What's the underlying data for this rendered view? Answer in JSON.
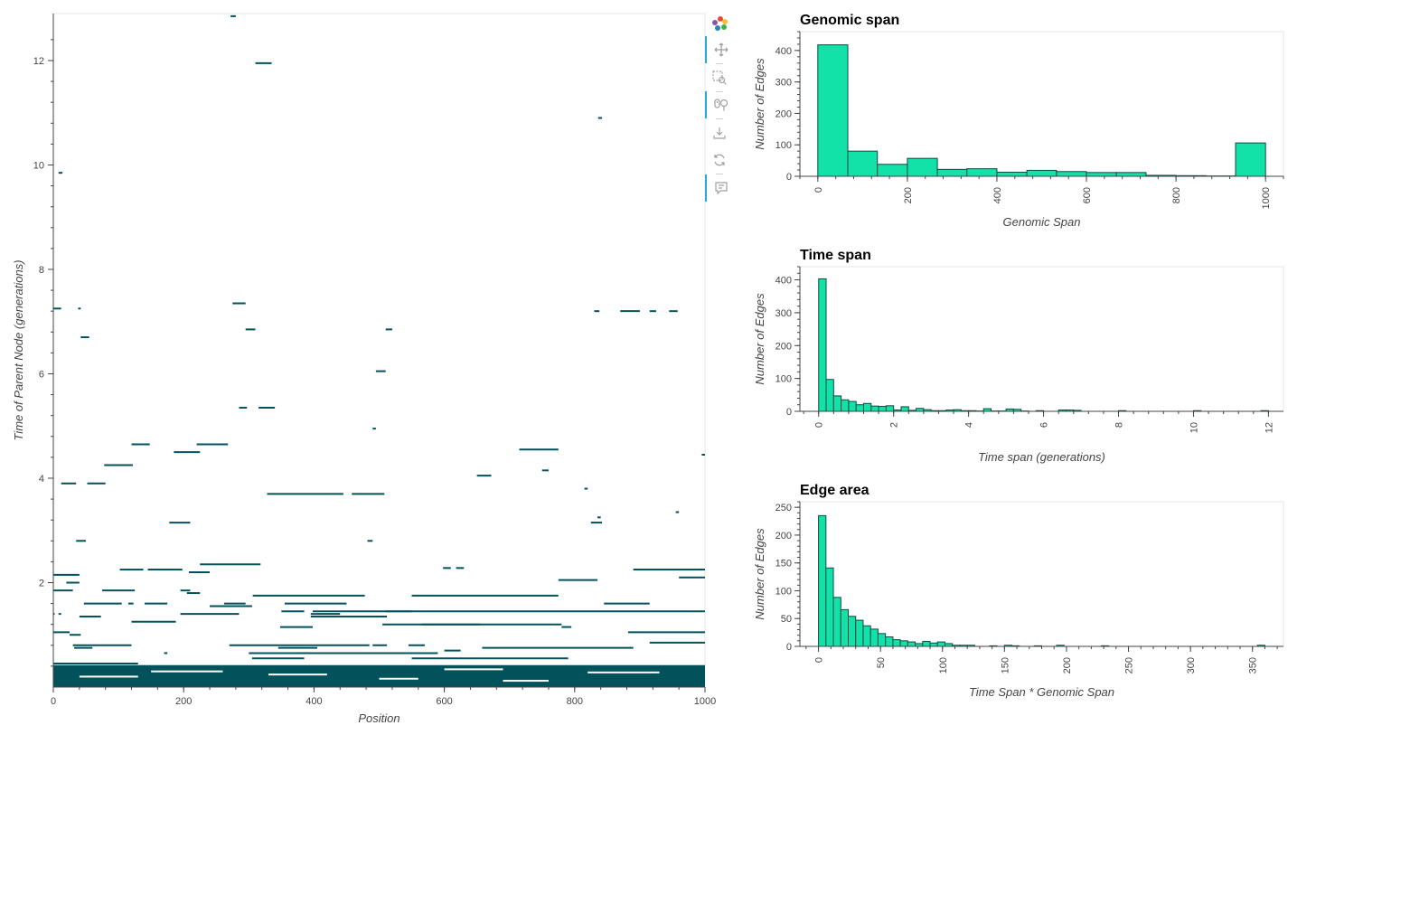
{
  "edges_plot": {
    "x_label": "Position",
    "y_label": "Time of Parent Node (generations)",
    "x_ticks": [
      "0",
      "200",
      "400",
      "600",
      "800",
      "1000"
    ],
    "y_ticks": [
      "2",
      "4",
      "6",
      "8",
      "10",
      "12"
    ],
    "colors": {
      "edge": "#02525c",
      "frame": "#e5e5e5",
      "axis": "#444444"
    }
  },
  "toolbar": {
    "items": [
      {
        "name": "bokeh-logo-icon",
        "active": false
      },
      {
        "name": "pan-icon",
        "active": true
      },
      {
        "name": "box-zoom-icon",
        "active": false
      },
      {
        "name": "wheel-zoom-icon",
        "active": true
      },
      {
        "name": "save-icon",
        "active": false
      },
      {
        "name": "reset-icon",
        "active": false
      },
      {
        "name": "hover-icon",
        "active": true
      }
    ]
  },
  "chart_data": [
    {
      "type": "scatter",
      "description_series": "edges",
      "title": "",
      "xlabel": "Position",
      "ylabel": "Time of Parent Node (generations)",
      "xlim": [
        0,
        1000
      ],
      "ylim": [
        0,
        12.9
      ],
      "x_ticks": [
        0,
        200,
        400,
        600,
        800,
        1000
      ],
      "y_ticks": [
        2,
        4,
        6,
        8,
        10,
        12
      ],
      "edges": [
        [
          272,
          280,
          12.85
        ],
        [
          310,
          335,
          11.95
        ],
        [
          836,
          842,
          10.9
        ],
        [
          8,
          14,
          9.85
        ],
        [
          0,
          12,
          7.25
        ],
        [
          38,
          42,
          7.25
        ],
        [
          830,
          838,
          7.2
        ],
        [
          870,
          900,
          7.2
        ],
        [
          915,
          925,
          7.2
        ],
        [
          945,
          958,
          7.2
        ],
        [
          275,
          295,
          7.35
        ],
        [
          295,
          310,
          6.85
        ],
        [
          42,
          55,
          6.7
        ],
        [
          510,
          520,
          6.85
        ],
        [
          495,
          510,
          6.05
        ],
        [
          315,
          340,
          5.35
        ],
        [
          285,
          297,
          5.35
        ],
        [
          490,
          495,
          4.95
        ],
        [
          120,
          148,
          4.65
        ],
        [
          220,
          268,
          4.65
        ],
        [
          185,
          225,
          4.5
        ],
        [
          715,
          775,
          4.55
        ],
        [
          995,
          1000,
          4.45
        ],
        [
          78,
          122,
          4.25
        ],
        [
          750,
          760,
          4.15
        ],
        [
          12,
          35,
          3.9
        ],
        [
          52,
          80,
          3.9
        ],
        [
          650,
          672,
          4.05
        ],
        [
          815,
          820,
          3.8
        ],
        [
          328,
          445,
          3.7
        ],
        [
          458,
          508,
          3.7
        ],
        [
          835,
          840,
          3.25
        ],
        [
          825,
          842,
          3.15
        ],
        [
          955,
          960,
          3.35
        ],
        [
          178,
          210,
          3.15
        ],
        [
          35,
          50,
          2.8
        ],
        [
          482,
          490,
          2.8
        ],
        [
          225,
          318,
          2.35
        ],
        [
          102,
          120,
          2.25
        ],
        [
          120,
          138,
          2.25
        ],
        [
          145,
          190,
          2.25
        ],
        [
          190,
          198,
          2.25
        ],
        [
          208,
          240,
          2.2
        ],
        [
          598,
          610,
          2.28
        ],
        [
          618,
          630,
          2.28
        ],
        [
          890,
          1000,
          2.25
        ],
        [
          0,
          40,
          2.15
        ],
        [
          20,
          40,
          2.0
        ],
        [
          0,
          30,
          1.85
        ],
        [
          75,
          125,
          1.85
        ],
        [
          195,
          210,
          1.85
        ],
        [
          205,
          225,
          1.8
        ],
        [
          306,
          478,
          1.75
        ],
        [
          550,
          775,
          1.75
        ],
        [
          775,
          835,
          2.05
        ],
        [
          960,
          1000,
          2.1
        ],
        [
          47,
          105,
          1.6
        ],
        [
          115,
          123,
          1.6
        ],
        [
          140,
          175,
          1.6
        ],
        [
          240,
          305,
          1.55
        ],
        [
          262,
          295,
          1.6
        ],
        [
          355,
          450,
          1.6
        ],
        [
          845,
          915,
          1.6
        ],
        [
          0,
          2,
          1.4
        ],
        [
          8,
          12,
          1.4
        ],
        [
          40,
          73,
          1.35
        ],
        [
          195,
          285,
          1.4
        ],
        [
          395,
          440,
          1.4
        ],
        [
          395,
          512,
          1.35
        ],
        [
          398,
          550,
          1.45
        ],
        [
          510,
          1000,
          1.45
        ],
        [
          120,
          188,
          1.25
        ],
        [
          350,
          385,
          1.45
        ],
        [
          505,
          655,
          1.2
        ],
        [
          565,
          780,
          1.2
        ],
        [
          780,
          795,
          1.15
        ],
        [
          0,
          25,
          1.05
        ],
        [
          25,
          42,
          1.0
        ],
        [
          348,
          398,
          1.15
        ],
        [
          882,
          1000,
          1.05
        ],
        [
          32,
          60,
          0.75
        ],
        [
          30,
          120,
          0.8
        ],
        [
          170,
          175,
          0.65
        ],
        [
          270,
          485,
          0.8
        ],
        [
          345,
          405,
          0.75
        ],
        [
          382,
          395,
          0.65
        ],
        [
          490,
          512,
          0.8
        ],
        [
          545,
          570,
          0.8
        ],
        [
          600,
          625,
          0.7
        ],
        [
          658,
          890,
          0.75
        ],
        [
          915,
          1000,
          0.85
        ],
        [
          305,
          385,
          0.55
        ],
        [
          0,
          130,
          0.45
        ],
        [
          300,
          590,
          0.65
        ],
        [
          550,
          790,
          0.55
        ]
      ],
      "dense_band": [
        0,
        0.42
      ]
    },
    {
      "type": "bar",
      "title": "Genomic span",
      "xlabel": "Genomic Span",
      "ylabel": "Number of Edges",
      "ylim": [
        0,
        460
      ],
      "xlim": [
        -40,
        1040
      ],
      "x_ticks": [
        0,
        200,
        400,
        600,
        800,
        1000
      ],
      "y_ticks": [
        0,
        100,
        200,
        300,
        400
      ],
      "bins": [
        [
          0,
          67,
          418
        ],
        [
          67,
          133,
          80
        ],
        [
          133,
          200,
          38
        ],
        [
          200,
          267,
          57
        ],
        [
          267,
          333,
          22
        ],
        [
          333,
          400,
          24
        ],
        [
          400,
          467,
          13
        ],
        [
          467,
          533,
          19
        ],
        [
          533,
          600,
          15
        ],
        [
          600,
          667,
          12
        ],
        [
          667,
          733,
          12
        ],
        [
          733,
          800,
          3
        ],
        [
          800,
          867,
          2
        ],
        [
          867,
          933,
          1
        ],
        [
          933,
          1000,
          106
        ]
      ]
    },
    {
      "type": "bar",
      "title": "Time span",
      "xlabel": "Time span (generations)",
      "ylabel": "Number of Edges",
      "ylim": [
        0,
        440
      ],
      "xlim": [
        -0.5,
        12.4
      ],
      "x_ticks": [
        0,
        2,
        4,
        6,
        8,
        10,
        12
      ],
      "y_ticks": [
        0,
        100,
        200,
        300,
        400
      ],
      "bins": [
        [
          0.0,
          0.2,
          403
        ],
        [
          0.2,
          0.4,
          97
        ],
        [
          0.4,
          0.6,
          47
        ],
        [
          0.6,
          0.8,
          35
        ],
        [
          0.8,
          1.0,
          30
        ],
        [
          1.0,
          1.2,
          20
        ],
        [
          1.2,
          1.4,
          24
        ],
        [
          1.4,
          1.6,
          16
        ],
        [
          1.6,
          1.8,
          15
        ],
        [
          1.8,
          2.0,
          17
        ],
        [
          2.0,
          2.2,
          4
        ],
        [
          2.2,
          2.4,
          14
        ],
        [
          2.4,
          2.6,
          3
        ],
        [
          2.6,
          2.8,
          9
        ],
        [
          2.8,
          3.0,
          5
        ],
        [
          3.0,
          3.2,
          2
        ],
        [
          3.2,
          3.4,
          2
        ],
        [
          3.4,
          3.6,
          4
        ],
        [
          3.6,
          3.8,
          5
        ],
        [
          3.8,
          4.0,
          2
        ],
        [
          4.0,
          4.2,
          2
        ],
        [
          4.2,
          4.4,
          1
        ],
        [
          4.4,
          4.6,
          8
        ],
        [
          4.6,
          4.8,
          1
        ],
        [
          4.8,
          5.0,
          1
        ],
        [
          5.0,
          5.2,
          7
        ],
        [
          5.2,
          5.4,
          6
        ],
        [
          5.4,
          5.6,
          1
        ],
        [
          5.8,
          6.0,
          2
        ],
        [
          6.4,
          6.6,
          4
        ],
        [
          6.6,
          6.8,
          4
        ],
        [
          6.8,
          7.0,
          3
        ],
        [
          8.0,
          8.2,
          2
        ],
        [
          10.0,
          10.2,
          2
        ],
        [
          11.8,
          12.0,
          2
        ]
      ]
    },
    {
      "type": "bar",
      "title": "Edge area",
      "xlabel": "Time Span * Genomic Span",
      "ylabel": "Number of Edges",
      "ylim": [
        0,
        260
      ],
      "xlim": [
        -15,
        375
      ],
      "x_ticks": [
        0,
        50,
        100,
        150,
        200,
        250,
        300,
        350
      ],
      "y_ticks": [
        0,
        50,
        100,
        150,
        200,
        250
      ],
      "bins": [
        [
          0,
          6,
          235
        ],
        [
          6,
          12,
          141
        ],
        [
          12,
          18,
          88
        ],
        [
          18,
          24,
          66
        ],
        [
          24,
          30,
          54
        ],
        [
          30,
          36,
          47
        ],
        [
          36,
          42,
          37
        ],
        [
          42,
          48,
          31
        ],
        [
          48,
          54,
          23
        ],
        [
          54,
          60,
          17
        ],
        [
          60,
          66,
          12
        ],
        [
          66,
          72,
          10
        ],
        [
          72,
          78,
          8
        ],
        [
          78,
          84,
          5
        ],
        [
          84,
          90,
          9
        ],
        [
          90,
          96,
          6
        ],
        [
          96,
          102,
          8
        ],
        [
          102,
          108,
          5
        ],
        [
          108,
          114,
          2
        ],
        [
          114,
          120,
          2
        ],
        [
          120,
          126,
          2
        ],
        [
          138,
          144,
          1
        ],
        [
          150,
          156,
          2
        ],
        [
          156,
          162,
          1
        ],
        [
          174,
          180,
          1
        ],
        [
          192,
          198,
          2
        ],
        [
          228,
          234,
          1
        ],
        [
          354,
          360,
          2
        ]
      ]
    }
  ]
}
